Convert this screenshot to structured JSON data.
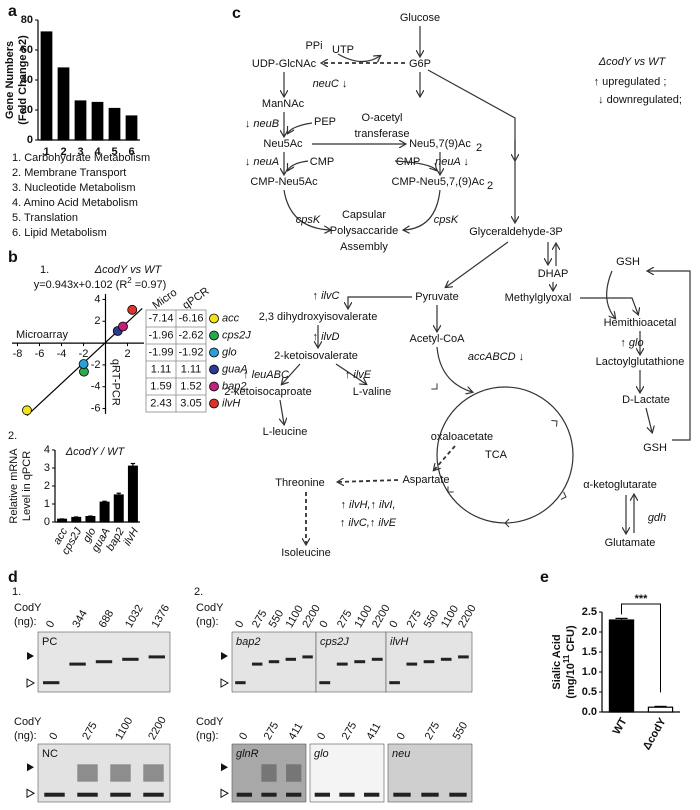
{
  "panel_labels": [
    "a",
    "b",
    "c",
    "d",
    "e"
  ],
  "chart_data": [
    {
      "type": "bar",
      "ylabel": [
        "Gene Numbers",
        "(Fold Change >2)"
      ],
      "categories": [
        "1",
        "2",
        "3",
        "4",
        "5",
        "6"
      ],
      "values": [
        72,
        48,
        26,
        25,
        21,
        16
      ],
      "color": "#000000",
      "ylim": [
        0,
        80
      ],
      "yticks": [
        0,
        20,
        40,
        60,
        80
      ]
    },
    {
      "type": "scatter",
      "title": "ΔcodY vs WT",
      "equation": [
        "y=0.943x+0.102 (R",
        "2",
        " =0.97)"
      ],
      "xlabel": "Microarray",
      "ylabel": "qRT-PCR",
      "xlim": [
        -8.5,
        3.5
      ],
      "ylim": [
        -6.5,
        4.5
      ],
      "xticks": [
        -8,
        -6,
        -4,
        -2,
        2
      ],
      "yticks": [
        -6,
        -4,
        -2,
        2,
        4
      ],
      "series": [
        {
          "name": "acc",
          "color": "#f3e21a",
          "x": [
            -7.14
          ],
          "values": [
            -6.16
          ]
        },
        {
          "name": "cps2J",
          "color": "#2aa84a",
          "x": [
            -1.96
          ],
          "values": [
            -2.62
          ]
        },
        {
          "name": "glo",
          "color": "#2b9fd8",
          "x": [
            -1.99
          ],
          "values": [
            -1.92
          ]
        },
        {
          "name": "guaA",
          "color": "#2c3a8f",
          "x": [
            1.11
          ],
          "values": [
            1.11
          ]
        },
        {
          "name": "bap2",
          "color": "#c2207f",
          "x": [
            1.59
          ],
          "values": [
            1.52
          ]
        },
        {
          "name": "ilvH",
          "color": "#d9352a",
          "x": [
            2.43
          ],
          "values": [
            3.05
          ]
        }
      ]
    },
    {
      "type": "bar",
      "title": "ΔcodY / WT",
      "ylabel": [
        "Relative mRNA",
        "Level in qPCR"
      ],
      "categories": [
        "acc",
        "cps2J",
        "glo",
        "guaA",
        "bap2",
        "ilvH"
      ],
      "values": [
        0.15,
        0.25,
        0.3,
        1.1,
        1.5,
        3.1
      ],
      "errors": [
        0.02,
        0.03,
        0.03,
        0.05,
        0.1,
        0.15
      ],
      "color": "#000000",
      "ylim": [
        0,
        4
      ],
      "yticks": [
        0,
        1,
        2,
        3,
        4
      ]
    },
    {
      "type": "bar",
      "ylabel": [
        "Sialic Acid",
        [
          "(mg/10",
          "11",
          " CFU)"
        ]
      ],
      "categories": [
        "WT",
        "ΔcodY"
      ],
      "values": [
        2.3,
        0.12
      ],
      "errors": [
        0.04,
        0.02
      ],
      "colors": [
        "#000000",
        "#ffffff"
      ],
      "ylim": [
        0,
        2.5
      ],
      "yticks": [
        {
          "value": 0,
          "label": "0.0"
        },
        0.5,
        {
          "value": 1,
          "label": "1.0"
        },
        1.5,
        {
          "value": 2,
          "label": "2.0"
        },
        2.5
      ],
      "significance": "***"
    }
  ],
  "panel_a_legend": [
    "1. Carbohydrate Metabolism",
    "2. Membrane Transport",
    "3. Nucleotide Metabolism",
    "4. Amino Acid Metabolism",
    "5. Translation",
    "6. Lipid Metabolism"
  ],
  "panel_b": {
    "part1": "1.",
    "table_header": [
      "Micro",
      "qPCR"
    ],
    "part2": "2."
  },
  "pathway": {
    "legend": [
      "ΔcodY vs WT",
      "↑ upregulated ;",
      "↓ downregulated;"
    ],
    "up_color": "#e3262b",
    "down_color": "#1fa3dc",
    "nodes": [
      "Glucose",
      "PPi",
      "UTP",
      "UDP-GlcNAc",
      "G6P",
      "ManNAc",
      "PEP",
      "O-acetyl",
      "transferase",
      "Neu5Ac",
      "Neu5,7(9)Ac",
      "2",
      "CMP",
      "CMP",
      "CMP-Neu5Ac",
      "CMP-Neu5,7,(9)Ac",
      "2",
      "cpsK",
      "Capsular",
      "Polysaccaride",
      "Assembly",
      "cpsK",
      "Glyceraldehyde-3P",
      "DHAP",
      "Pyruvate",
      "Methylglyoxal",
      "GSH",
      "2,3 dihydroxyisovalerate",
      "Acetyl-CoA",
      "Hemithioacetal",
      "2-ketoisovalerate",
      "Lactoylglutathione",
      "2-ketoisocaproate",
      "L-valine",
      "D-Lactate",
      "L-leucine",
      "oxaloacetate",
      "GSH",
      "TCA",
      "Aspartate",
      "Threonine",
      "α-ketoglutarate",
      "Glutamate",
      "Isoleucine"
    ],
    "enzymes_up": [
      "↑ ilvC",
      "↑ ilvD",
      "↑ leuABC",
      "↑ ilvE",
      "↑ glo",
      "↑ ilvH,↑ ilvI,",
      "↑ ilvC,↑ ilvE",
      "gdh"
    ],
    "enzymes_down": [
      "neuC ↓",
      "↓ neuB",
      "↓ neuA",
      "neuA ↓",
      "accABCD ↓"
    ]
  },
  "gels": {
    "part1": "1.",
    "part2": "2.",
    "blocks": [
      {
        "label": "CodY",
        "unit": "(ng):",
        "panels": [
          {
            "name": "PC",
            "lanes": [
              0,
              344,
              688,
              1032,
              1376
            ]
          }
        ]
      },
      {
        "label": "CodY",
        "unit": "(ng):",
        "panels": [
          {
            "name": "NC",
            "lanes": [
              0,
              275,
              1100,
              2200
            ]
          }
        ]
      },
      {
        "label": "CodY",
        "unit": "(ng):",
        "panels": [
          {
            "name": "bap2",
            "lanes": [
              0,
              275,
              550,
              1100,
              2200
            ]
          },
          {
            "name": "cps2J",
            "lanes": [
              0,
              275,
              1100,
              2200
            ]
          },
          {
            "name": "ilvH",
            "lanes": [
              0,
              275,
              550,
              1100,
              2200
            ]
          }
        ]
      },
      {
        "label": "CodY",
        "unit": "(ng):",
        "panels": [
          {
            "name": "glnR",
            "lanes": [
              0,
              275,
              411
            ]
          },
          {
            "name": "glo",
            "lanes": [
              0,
              275,
              411
            ]
          },
          {
            "name": "neu",
            "lanes": [
              0,
              275,
              550
            ]
          }
        ]
      }
    ]
  }
}
